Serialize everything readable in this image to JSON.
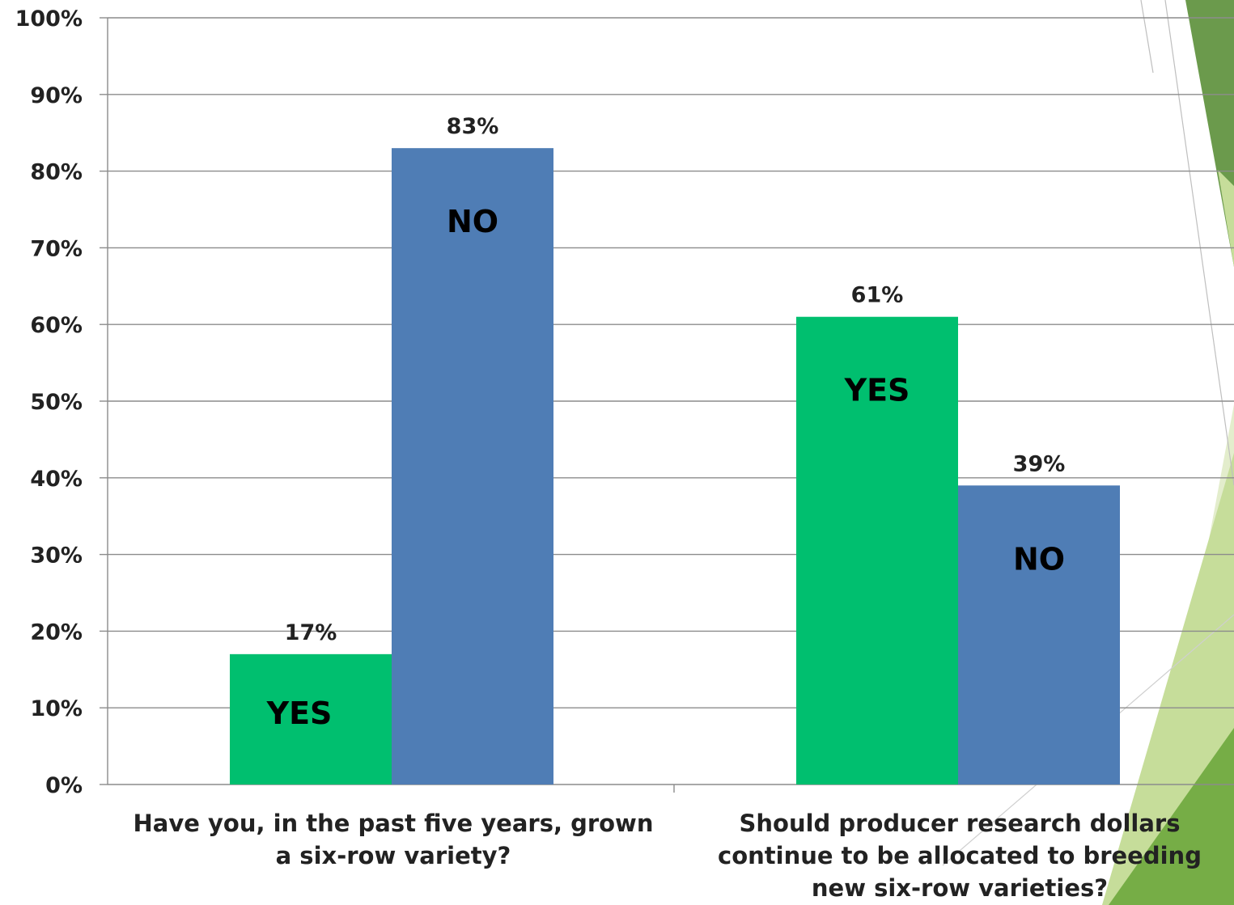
{
  "chart_data": {
    "type": "bar",
    "title": "",
    "xlabel": "",
    "ylabel": "",
    "categories": [
      [
        "Have you, in the past five years, grown",
        "a six-row variety?"
      ],
      [
        "Should producer research dollars",
        "continue to be allocated to breeding",
        "new six-row varieties?"
      ]
    ],
    "series": [
      {
        "name": "YES",
        "color": "#00bf6f",
        "values": [
          17,
          61
        ],
        "labels": [
          "17%",
          "61%"
        ]
      },
      {
        "name": "NO",
        "color": "#4f7db5",
        "values": [
          83,
          39
        ],
        "labels": [
          "83%",
          "39%"
        ]
      }
    ],
    "ylim": [
      0,
      100
    ],
    "yticks": [
      "0%",
      "10%",
      "20%",
      "30%",
      "40%",
      "50%",
      "60%",
      "70%",
      "80%",
      "90%",
      "100%"
    ],
    "grid": true,
    "legend": "none (series names shown inside bars)"
  },
  "decoration": {
    "dark_green": "#6b9a4c",
    "light_green": "#c6dd9a",
    "pale_green": "#e3edcc",
    "mid_green": "#76ad46"
  }
}
